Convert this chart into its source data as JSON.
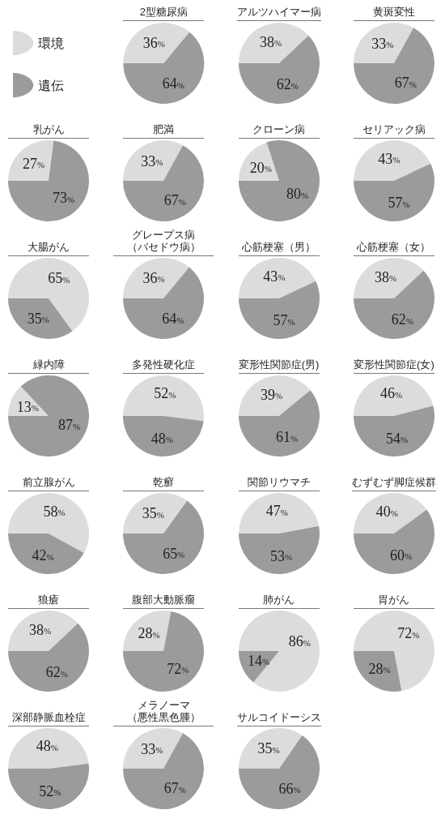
{
  "chart_data": [
    {
      "type": "pie",
      "title": "2型糖尿病",
      "categories": [
        "環境",
        "遺伝"
      ],
      "values": [
        36,
        64
      ],
      "value_labels": [
        "36%",
        "64%"
      ],
      "colors": [
        "#dcdcdc",
        "#9b9b9b"
      ],
      "legend": "left"
    },
    {
      "type": "pie",
      "title": "アルツハイマー病",
      "categories": [
        null,
        null
      ],
      "values": [
        38,
        62
      ],
      "value_labels": [
        "38%",
        "62%"
      ],
      "colors": [
        "#dcdcdc",
        "#9b9b9b"
      ]
    },
    {
      "type": "pie",
      "title": "黄斑変性",
      "categories": [
        null,
        null
      ],
      "values": [
        33,
        67
      ],
      "value_labels": [
        "33%",
        "67%"
      ],
      "colors": [
        "#dcdcdc",
        "#9b9b9b"
      ]
    },
    {
      "type": "pie",
      "title": "乳がん",
      "categories": [
        null,
        null
      ],
      "values": [
        27,
        73
      ],
      "value_labels": [
        "27%",
        "73%"
      ],
      "colors": [
        "#dcdcdc",
        "#9b9b9b"
      ]
    },
    {
      "type": "pie",
      "title": "肥満",
      "categories": [
        null,
        null
      ],
      "values": [
        33,
        67
      ],
      "value_labels": [
        "33%",
        "67%"
      ],
      "colors": [
        "#dcdcdc",
        "#9b9b9b"
      ]
    },
    {
      "type": "pie",
      "title": "クローン病",
      "categories": [
        null,
        null
      ],
      "values": [
        20,
        80
      ],
      "value_labels": [
        "20%",
        "80%"
      ],
      "colors": [
        "#dcdcdc",
        "#9b9b9b"
      ]
    },
    {
      "type": "pie",
      "title": "セリアック病",
      "categories": [
        null,
        null
      ],
      "values": [
        43,
        57
      ],
      "value_labels": [
        "43%",
        "57%"
      ],
      "colors": [
        "#dcdcdc",
        "#9b9b9b"
      ]
    },
    {
      "type": "pie",
      "title": "大腸がん",
      "categories": [
        null,
        null
      ],
      "values": [
        65,
        35
      ],
      "value_labels": [
        "65%",
        "35%"
      ],
      "colors": [
        "#dcdcdc",
        "#9b9b9b"
      ]
    },
    {
      "type": "pie",
      "title": "グレープス病（バセドウ病）",
      "categories": [
        null,
        null
      ],
      "values": [
        36,
        64
      ],
      "value_labels": [
        "36%",
        "64%"
      ],
      "colors": [
        "#dcdcdc",
        "#9b9b9b"
      ]
    },
    {
      "type": "pie",
      "title": "心筋梗塞（男）",
      "categories": [
        null,
        null
      ],
      "values": [
        43,
        57
      ],
      "value_labels": [
        "43%",
        "57%"
      ],
      "colors": [
        "#dcdcdc",
        "#9b9b9b"
      ]
    },
    {
      "type": "pie",
      "title": "心筋梗塞（女）",
      "categories": [
        null,
        null
      ],
      "values": [
        38,
        62
      ],
      "value_labels": [
        "38%",
        "62%"
      ],
      "colors": [
        "#dcdcdc",
        "#9b9b9b"
      ]
    },
    {
      "type": "pie",
      "title": "緑内障",
      "categories": [
        null,
        null
      ],
      "values": [
        13,
        87
      ],
      "value_labels": [
        "13%",
        "87%"
      ],
      "colors": [
        "#dcdcdc",
        "#9b9b9b"
      ]
    },
    {
      "type": "pie",
      "title": "多発性硬化症",
      "categories": [
        null,
        null
      ],
      "values": [
        52,
        48
      ],
      "value_labels": [
        "52%",
        "48%"
      ],
      "colors": [
        "#dcdcdc",
        "#9b9b9b"
      ]
    },
    {
      "type": "pie",
      "title": "変形性関節症(男)",
      "categories": [
        null,
        null
      ],
      "values": [
        39,
        61
      ],
      "value_labels": [
        "39%",
        "61%"
      ],
      "colors": [
        "#dcdcdc",
        "#9b9b9b"
      ]
    },
    {
      "type": "pie",
      "title": "変形性関節症(女)",
      "categories": [
        null,
        null
      ],
      "values": [
        46,
        54
      ],
      "value_labels": [
        "46%",
        "54%"
      ],
      "colors": [
        "#dcdcdc",
        "#9b9b9b"
      ]
    },
    {
      "type": "pie",
      "title": "前立腺がん",
      "categories": [
        null,
        null
      ],
      "values": [
        58,
        42
      ],
      "value_labels": [
        "58%",
        "42%"
      ],
      "colors": [
        "#dcdcdc",
        "#9b9b9b"
      ]
    },
    {
      "type": "pie",
      "title": "乾癬",
      "categories": [
        null,
        null
      ],
      "values": [
        35,
        65
      ],
      "value_labels": [
        "35%",
        "65%"
      ],
      "colors": [
        "#dcdcdc",
        "#9b9b9b"
      ]
    },
    {
      "type": "pie",
      "title": "関節リウマチ",
      "categories": [
        null,
        null
      ],
      "values": [
        47,
        53
      ],
      "value_labels": [
        "47%",
        "53%"
      ],
      "colors": [
        "#dcdcdc",
        "#9b9b9b"
      ]
    },
    {
      "type": "pie",
      "title": "むずむず脚症候群",
      "categories": [
        null,
        null
      ],
      "values": [
        40,
        60
      ],
      "value_labels": [
        "40%",
        "60%"
      ],
      "colors": [
        "#dcdcdc",
        "#9b9b9b"
      ]
    },
    {
      "type": "pie",
      "title": "狼瘡",
      "categories": [
        null,
        null
      ],
      "values": [
        38,
        62
      ],
      "value_labels": [
        "38%",
        "62%"
      ],
      "colors": [
        "#dcdcdc",
        "#9b9b9b"
      ]
    },
    {
      "type": "pie",
      "title": "腹部大動脈瘤",
      "categories": [
        null,
        null
      ],
      "values": [
        28,
        72
      ],
      "value_labels": [
        "28%",
        "72%"
      ],
      "colors": [
        "#dcdcdc",
        "#9b9b9b"
      ]
    },
    {
      "type": "pie",
      "title": "肺がん",
      "categories": [
        null,
        null
      ],
      "values": [
        86,
        14
      ],
      "value_labels": [
        "86%",
        "14%"
      ],
      "colors": [
        "#dcdcdc",
        "#9b9b9b"
      ]
    },
    {
      "type": "pie",
      "title": "胃がん",
      "categories": [
        null,
        null
      ],
      "values": [
        72,
        28
      ],
      "value_labels": [
        "72%",
        "28%"
      ],
      "colors": [
        "#dcdcdc",
        "#9b9b9b"
      ]
    },
    {
      "type": "pie",
      "title": "深部静脈血栓症",
      "categories": [
        null,
        null
      ],
      "values": [
        48,
        52
      ],
      "value_labels": [
        "48%",
        "52%"
      ],
      "colors": [
        "#dcdcdc",
        "#9b9b9b"
      ]
    },
    {
      "type": "pie",
      "title": "メラノーマ（悪性黒色腫）",
      "categories": [
        null,
        null
      ],
      "values": [
        33,
        67
      ],
      "value_labels": [
        "33%",
        "67%"
      ],
      "colors": [
        "#dcdcdc",
        "#9b9b9b"
      ]
    },
    {
      "type": "pie",
      "title": "サルコイドーシス",
      "categories": [
        null,
        null
      ],
      "values": [
        35,
        66
      ],
      "value_labels": [
        "35%",
        "66%"
      ],
      "colors": [
        "#dcdcdc",
        "#9b9b9b"
      ]
    }
  ]
}
